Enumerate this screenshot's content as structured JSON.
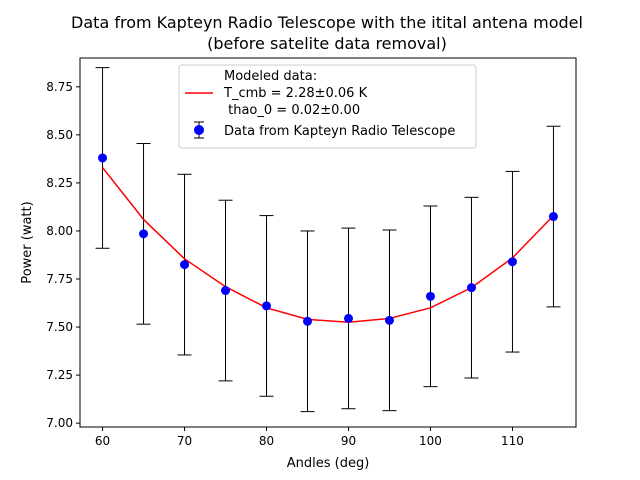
{
  "chart_data": {
    "type": "scatter",
    "title_line1": "Data from Kapteyn Radio Telescope with the itital antena model",
    "title_line2": "(before satelite data removal)",
    "xlabel": "Andles (deg)",
    "ylabel": "Power (watt)",
    "xlim": [
      57.25,
      117.75
    ],
    "ylim": [
      6.98,
      8.9
    ],
    "xticks": [
      60,
      70,
      80,
      90,
      100,
      110
    ],
    "yticks": [
      7.0,
      7.25,
      7.5,
      7.75,
      8.0,
      8.25,
      8.5,
      8.75
    ],
    "ytick_labels": [
      "7.00",
      "7.25",
      "7.50",
      "7.75",
      "8.00",
      "8.25",
      "8.50",
      "8.75"
    ],
    "legend": {
      "placement": "top-center",
      "model_line1": "Modeled data:",
      "model_line2": "T_cmb = 2.28±0.06  K",
      "model_line3": " thao_0 = 0.02±0.00",
      "data_label": "Data from Kapteyn Radio Telescope"
    },
    "series": [
      {
        "name": "Data from Kapteyn Radio Telescope",
        "kind": "errorbar",
        "color": "#0000ff",
        "x": [
          60,
          65,
          70,
          75,
          80,
          85,
          90,
          95,
          100,
          105,
          110,
          115
        ],
        "y": [
          8.38,
          7.985,
          7.825,
          7.69,
          7.61,
          7.53,
          7.545,
          7.535,
          7.66,
          7.705,
          7.84,
          8.075
        ],
        "yerr": [
          0.47,
          0.47,
          0.47,
          0.47,
          0.47,
          0.47,
          0.47,
          0.47,
          0.47,
          0.47,
          0.47,
          0.47
        ]
      },
      {
        "name": "Modeled data",
        "kind": "line",
        "color": "#ff0000",
        "x": [
          60,
          65,
          70,
          75,
          80,
          85,
          90,
          95,
          100,
          105,
          110,
          115
        ],
        "y": [
          8.33,
          8.06,
          7.855,
          7.71,
          7.6,
          7.54,
          7.525,
          7.545,
          7.6,
          7.705,
          7.86,
          8.08
        ]
      }
    ]
  }
}
